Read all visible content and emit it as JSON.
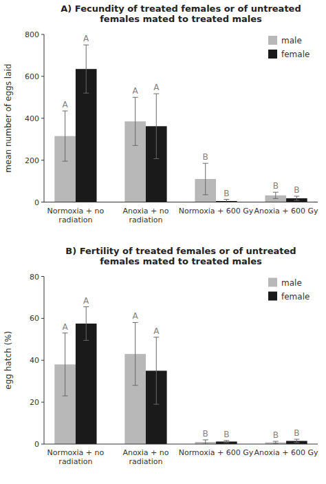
{
  "chart_data": [
    {
      "type": "bar",
      "title": "A) Fecundity of treated females or of untreated\nfemales mated to treated males",
      "y_label": "mean number of eggs laid",
      "categories": [
        "Normoxia + no\nradiation",
        "Anoxia + no\nradiation",
        "Normoxia + 600 Gy",
        "Anoxia + 600 Gy"
      ],
      "series": [
        {
          "name": "male",
          "color": "#b8b8b8",
          "values": [
            315,
            385,
            110,
            32
          ],
          "errors": [
            120,
            115,
            75,
            15
          ],
          "letters": [
            "A",
            "A",
            "B",
            "B"
          ]
        },
        {
          "name": "female",
          "color": "#1a1a1a",
          "values": [
            635,
            362,
            5,
            18
          ],
          "errors": [
            115,
            155,
            8,
            10
          ],
          "letters": [
            "A",
            "A",
            "B",
            "B"
          ]
        }
      ],
      "ylim": [
        0,
        800
      ],
      "yticks": [
        0,
        200,
        400,
        600,
        800
      ],
      "grid": false,
      "legend": "upper right"
    },
    {
      "type": "bar",
      "title": "B) Fertility of treated females or of untreated\nfemales mated to treated males",
      "y_label": "egg hatch (%)",
      "categories": [
        "Normoxia + no\nradiation",
        "Anoxia + no\nradiation",
        "Normoxia + 600 Gy",
        "Anoxia + 600 Gy"
      ],
      "series": [
        {
          "name": "male",
          "color": "#b8b8b8",
          "values": [
            38,
            43,
            1,
            0.8
          ],
          "errors": [
            15,
            15,
            1,
            0.5
          ],
          "letters": [
            "A",
            "A",
            "B",
            "B"
          ]
        },
        {
          "name": "female",
          "color": "#1a1a1a",
          "values": [
            57.5,
            35,
            1.2,
            1.5
          ],
          "errors": [
            8,
            16,
            0.5,
            0.8
          ],
          "letters": [
            "A",
            "A",
            "B",
            "B"
          ]
        }
      ],
      "ylim": [
        0,
        80
      ],
      "yticks": [
        0,
        20,
        40,
        60,
        80
      ],
      "grid": false,
      "legend": "upper right"
    }
  ]
}
